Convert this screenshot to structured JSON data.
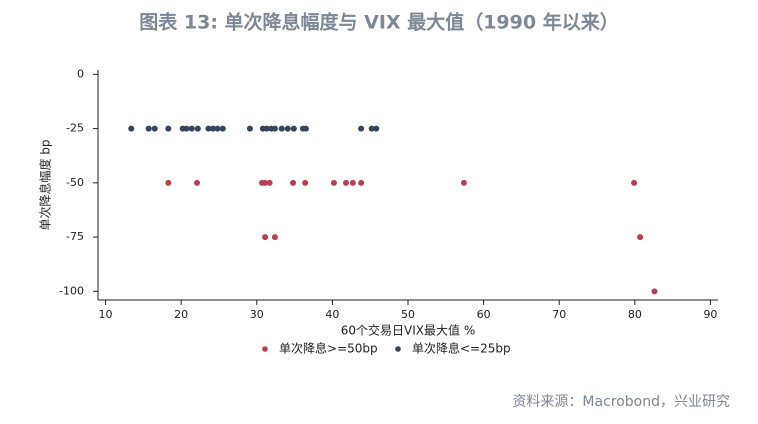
{
  "chart_data": {
    "type": "scatter",
    "title": "图表 13: 单次降息幅度与 VIX 最大值（1990 年以来）",
    "x_label": "60个交易日VIX最大值 %",
    "y_label": "单次降息幅度 bp",
    "source": "资料来源：Macrobond，兴业研究",
    "xlim": [
      9,
      91
    ],
    "xticks": [
      10,
      20,
      30,
      40,
      50,
      60,
      70,
      80,
      90
    ],
    "ylim": [
      -104,
      2
    ],
    "yticks": [
      0,
      -25,
      -50,
      -75,
      -100
    ],
    "legend": "bottom",
    "series": [
      {
        "name": "单次降息>=50bp",
        "color": "#b5404f",
        "x": [
          18.3,
          22.1,
          30.7,
          31.1,
          31.7,
          34.8,
          36.4,
          40.2,
          41.8,
          42.7,
          43.8,
          57.4,
          79.9,
          31.1,
          32.4,
          80.7,
          82.6
        ],
        "values": [
          -50,
          -50,
          -50,
          -50,
          -50,
          -50,
          -50,
          -50,
          -50,
          -50,
          -50,
          -50,
          -50,
          -75,
          -75,
          -75,
          -100
        ]
      },
      {
        "name": "单次降息<=25bp",
        "color": "#36455f",
        "x": [
          13.4,
          15.7,
          16.5,
          18.3,
          20.2,
          20.7,
          21.4,
          22.2,
          23.6,
          24.2,
          24.8,
          25.5,
          29.1,
          30.8,
          31.3,
          31.9,
          32.4,
          33.3,
          34.1,
          34.9,
          36.1,
          36.5,
          43.8,
          45.2,
          45.8
        ],
        "values": [
          -25,
          -25,
          -25,
          -25,
          -25,
          -25,
          -25,
          -25,
          -25,
          -25,
          -25,
          -25,
          -25,
          -25,
          -25,
          -25,
          -25,
          -25,
          -25,
          -25,
          -25,
          -25,
          -25,
          -25,
          -25
        ]
      }
    ]
  }
}
